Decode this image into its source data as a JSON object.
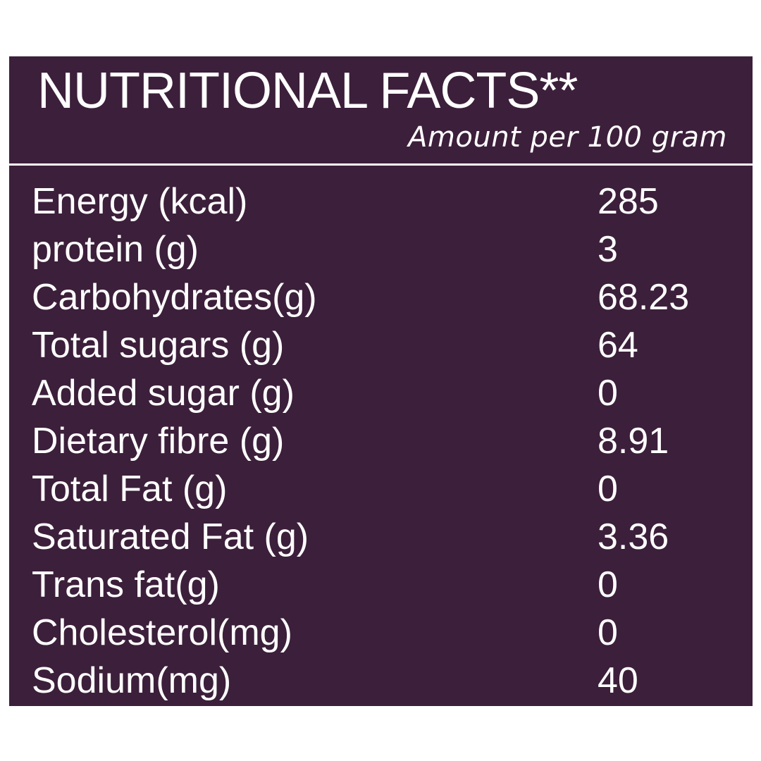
{
  "panel": {
    "title": "NUTRITIONAL FACTS**",
    "subtitle": "Amount per 100 gram",
    "background_color": "#3c1f3a",
    "text_color": "#ffffff"
  },
  "nutrients": [
    {
      "label": "Energy (kcal)",
      "value": "285"
    },
    {
      "label": "protein (g)",
      "value": "3"
    },
    {
      "label": "Carbohydrates(g)",
      "value": "68.23"
    },
    {
      "label": "Total sugars (g)",
      "value": "64"
    },
    {
      "label": "Added sugar (g)",
      "value": "0"
    },
    {
      "label": "Dietary fibre (g)",
      "value": "8.91"
    },
    {
      "label": "Total Fat (g)",
      "value": "0"
    },
    {
      "label": "Saturated Fat (g)",
      "value": "3.36"
    },
    {
      "label": "Trans fat(g)",
      "value": "0"
    },
    {
      "label": "Cholesterol(mg)",
      "value": "0"
    },
    {
      "label": "Sodium(mg)",
      "value": "40"
    }
  ]
}
